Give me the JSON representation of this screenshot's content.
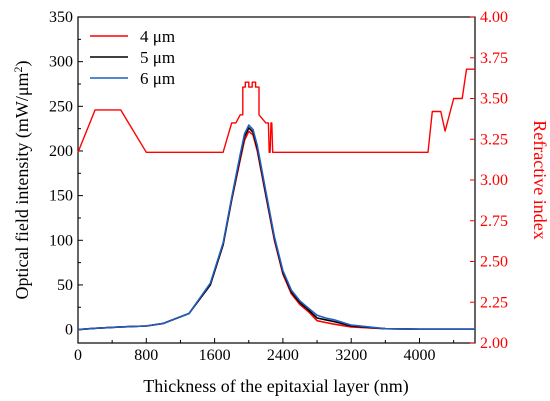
{
  "chart_data": {
    "type": "line",
    "xlabel": "Thickness of the epitaxial layer (nm)",
    "ylabel_left": "Optical field intensity (mW/μm²)",
    "ylabel_left_parts": {
      "text": "Optical field intensity (mW/μm",
      "sup": "2",
      "close": ")"
    },
    "ylabel_right": "Refractive index",
    "xlim": [
      0,
      4650
    ],
    "ylim_left": [
      -15,
      350
    ],
    "ylim_right": [
      2.0,
      4.0
    ],
    "xticks": [
      0,
      800,
      1600,
      2400,
      3200,
      4000
    ],
    "xtick_labels": [
      "0",
      "800",
      "1600",
      "2400",
      "3200",
      "4000"
    ],
    "yticks_left": [
      0,
      50,
      100,
      150,
      200,
      250,
      300,
      350
    ],
    "ytick_labels_left": [
      "0",
      "50",
      "100",
      "150",
      "200",
      "250",
      "300",
      "350"
    ],
    "yticks_right": [
      2.0,
      2.25,
      2.5,
      2.75,
      3.0,
      3.25,
      3.5,
      3.75,
      4.0
    ],
    "ytick_labels_right": [
      "2.00",
      "2.25",
      "2.50",
      "2.75",
      "3.00",
      "3.25",
      "3.50",
      "3.75",
      "4.00"
    ],
    "grid": false,
    "legend_position": "top-left",
    "left_axis_color": "#000000",
    "right_axis_color": "#ff0000",
    "series": [
      {
        "name": "4 μm",
        "axis": "left",
        "color": "#ff0000",
        "x": [
          0,
          200,
          500,
          800,
          1000,
          1300,
          1550,
          1700,
          1800,
          1900,
          1950,
          2000,
          2050,
          2100,
          2200,
          2300,
          2400,
          2500,
          2600,
          2700,
          2800,
          2900,
          3000,
          3200,
          3600,
          4000,
          4650
        ],
        "y": [
          0,
          1.5,
          3,
          4,
          7,
          18,
          50,
          95,
          145,
          190,
          212,
          222,
          218,
          200,
          150,
          100,
          62,
          40,
          28,
          20,
          10,
          8,
          6,
          3,
          1,
          0.5,
          0.5
        ]
      },
      {
        "name": "5 μm",
        "axis": "left",
        "color": "#000000",
        "x": [
          0,
          200,
          500,
          800,
          1000,
          1300,
          1550,
          1700,
          1800,
          1900,
          1950,
          2000,
          2050,
          2100,
          2200,
          2300,
          2400,
          2500,
          2600,
          2700,
          2800,
          2900,
          3000,
          3200,
          3600,
          4000,
          4650
        ],
        "y": [
          0,
          1.5,
          3,
          4,
          7,
          18,
          50,
          95,
          146,
          193,
          216,
          226,
          221,
          203,
          152,
          102,
          64,
          42,
          30,
          22,
          13,
          11,
          9,
          4,
          1,
          0.5,
          0.5
        ]
      },
      {
        "name": "6 μm",
        "axis": "left",
        "color": "#1f5fc0",
        "x": [
          0,
          200,
          500,
          800,
          1000,
          1300,
          1550,
          1700,
          1800,
          1900,
          1950,
          2000,
          2050,
          2100,
          2200,
          2300,
          2400,
          2500,
          2600,
          2700,
          2800,
          2900,
          3000,
          3200,
          3600,
          4000,
          4650
        ],
        "y": [
          0,
          1.5,
          3,
          4,
          7,
          18,
          52,
          97,
          148,
          196,
          219,
          229,
          224,
          206,
          155,
          104,
          66,
          44,
          32,
          24,
          16,
          13,
          11,
          5,
          1,
          0.5,
          0.5
        ]
      },
      {
        "name": "Refractive index",
        "axis": "right",
        "color": "#ff0000",
        "x": [
          0,
          200,
          500,
          800,
          1700,
          1800,
          1850,
          1900,
          1930,
          1930,
          1960,
          1960,
          2000,
          2000,
          2040,
          2040,
          2080,
          2080,
          2120,
          2120,
          2200,
          2230,
          2240,
          2250,
          2260,
          2270,
          2280,
          2300,
          2350,
          4100,
          4150,
          4250,
          4300,
          4400,
          4500,
          4550,
          4650
        ],
        "y": [
          3.17,
          3.43,
          3.43,
          3.17,
          3.17,
          3.35,
          3.35,
          3.4,
          3.4,
          3.57,
          3.57,
          3.6,
          3.6,
          3.57,
          3.57,
          3.6,
          3.6,
          3.57,
          3.57,
          3.4,
          3.35,
          3.35,
          3.17,
          3.17,
          3.35,
          3.35,
          3.17,
          3.17,
          3.17,
          3.17,
          3.42,
          3.42,
          3.3,
          3.5,
          3.5,
          3.68,
          3.68
        ]
      }
    ]
  }
}
